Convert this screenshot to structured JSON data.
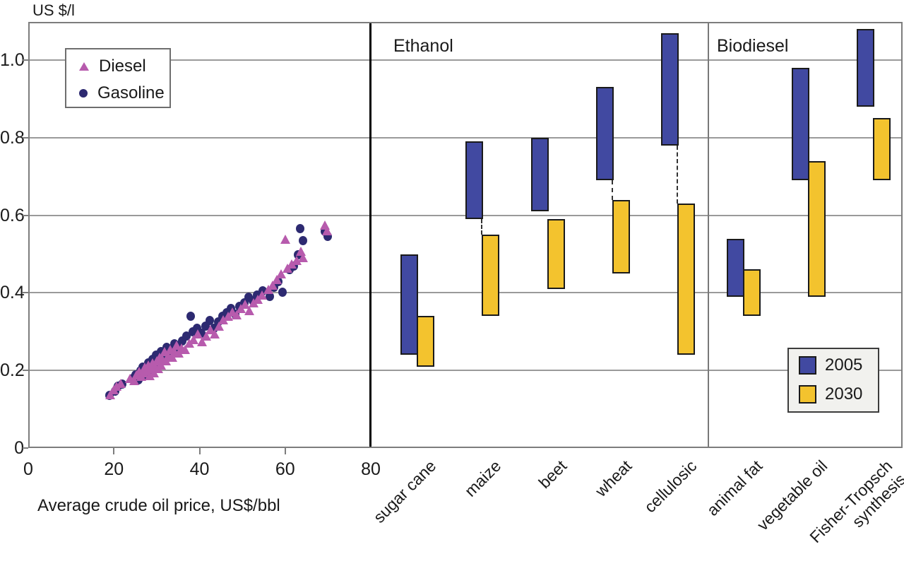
{
  "colors": {
    "diesel": "#B75BAD",
    "gasoline": "#2D2A71",
    "bar_2005": "#4149A1",
    "bar_2030": "#F3C32E",
    "grid": "#9A9A9A",
    "frame": "#7D7D7D",
    "bar_border": "#1A1A1A"
  },
  "chart_data": [
    {
      "type": "scatter",
      "ylabel": "US $/l",
      "xlabel": "Average crude oil price, US$/bbl",
      "xlim": [
        0,
        80
      ],
      "ylim": [
        0,
        1.09
      ],
      "xticks": [
        0,
        20,
        40,
        60,
        80
      ],
      "xtick_labels": [
        "0",
        "20",
        "40",
        "60",
        "80"
      ],
      "yticks": [
        0,
        0.2,
        0.4,
        0.6,
        0.8,
        1.0
      ],
      "ytick_labels": [
        "0",
        "0.2",
        "0.4",
        "0.6",
        "0.8",
        "1.0"
      ],
      "grid": "horizontal",
      "legend_position": "top-left",
      "series": [
        {
          "name": "Diesel",
          "marker": "triangle",
          "color": "#B75BAD",
          "points": [
            [
              19.2,
              0.13
            ],
            [
              20.0,
              0.142
            ],
            [
              20.6,
              0.152
            ],
            [
              21.6,
              0.158
            ],
            [
              23.8,
              0.172
            ],
            [
              24.8,
              0.166
            ],
            [
              25.3,
              0.18
            ],
            [
              25.9,
              0.19
            ],
            [
              26.4,
              0.176
            ],
            [
              26.9,
              0.186
            ],
            [
              27.2,
              0.2
            ],
            [
              27.7,
              0.192
            ],
            [
              28.0,
              0.206
            ],
            [
              28.3,
              0.178
            ],
            [
              28.7,
              0.196
            ],
            [
              29.0,
              0.212
            ],
            [
              29.3,
              0.186
            ],
            [
              29.7,
              0.2
            ],
            [
              30.0,
              0.216
            ],
            [
              30.3,
              0.196
            ],
            [
              30.6,
              0.226
            ],
            [
              31.0,
              0.206
            ],
            [
              31.4,
              0.22
            ],
            [
              31.8,
              0.24
            ],
            [
              32.2,
              0.216
            ],
            [
              32.7,
              0.23
            ],
            [
              33.1,
              0.246
            ],
            [
              33.6,
              0.226
            ],
            [
              34.1,
              0.24
            ],
            [
              34.6,
              0.256
            ],
            [
              35.2,
              0.236
            ],
            [
              35.8,
              0.25
            ],
            [
              36.6,
              0.246
            ],
            [
              37.6,
              0.262
            ],
            [
              38.6,
              0.272
            ],
            [
              39.6,
              0.286
            ],
            [
              40.6,
              0.266
            ],
            [
              41.6,
              0.28
            ],
            [
              42.6,
              0.296
            ],
            [
              43.6,
              0.286
            ],
            [
              44.6,
              0.306
            ],
            [
              45.6,
              0.322
            ],
            [
              46.6,
              0.332
            ],
            [
              47.6,
              0.342
            ],
            [
              48.6,
              0.336
            ],
            [
              49.6,
              0.352
            ],
            [
              50.6,
              0.362
            ],
            [
              51.6,
              0.346
            ],
            [
              52.6,
              0.366
            ],
            [
              53.6,
              0.376
            ],
            [
              54.6,
              0.386
            ],
            [
              56.0,
              0.4
            ],
            [
              57.0,
              0.412
            ],
            [
              58.0,
              0.426
            ],
            [
              59.0,
              0.44
            ],
            [
              60.0,
              0.53
            ],
            [
              60.6,
              0.456
            ],
            [
              61.6,
              0.466
            ],
            [
              62.6,
              0.476
            ],
            [
              63.6,
              0.5
            ],
            [
              64.2,
              0.482
            ],
            [
              69.3,
              0.566
            ],
            [
              69.8,
              0.552
            ]
          ]
        },
        {
          "name": "Gasoline",
          "marker": "circle",
          "color": "#2D2A71",
          "points": [
            [
              19.0,
              0.136
            ],
            [
              20.3,
              0.148
            ],
            [
              21.0,
              0.16
            ],
            [
              22.0,
              0.166
            ],
            [
              24.4,
              0.18
            ],
            [
              25.1,
              0.19
            ],
            [
              25.7,
              0.176
            ],
            [
              26.2,
              0.2
            ],
            [
              26.7,
              0.21
            ],
            [
              27.2,
              0.19
            ],
            [
              27.6,
              0.206
            ],
            [
              28.0,
              0.22
            ],
            [
              28.4,
              0.2
            ],
            [
              28.8,
              0.216
            ],
            [
              29.1,
              0.23
            ],
            [
              29.5,
              0.21
            ],
            [
              29.9,
              0.24
            ],
            [
              30.2,
              0.22
            ],
            [
              30.6,
              0.236
            ],
            [
              31.0,
              0.25
            ],
            [
              31.4,
              0.23
            ],
            [
              31.9,
              0.246
            ],
            [
              32.4,
              0.26
            ],
            [
              32.9,
              0.24
            ],
            [
              33.5,
              0.256
            ],
            [
              34.1,
              0.27
            ],
            [
              34.9,
              0.26
            ],
            [
              35.9,
              0.276
            ],
            [
              36.9,
              0.29
            ],
            [
              37.9,
              0.34
            ],
            [
              38.4,
              0.3
            ],
            [
              39.4,
              0.31
            ],
            [
              40.4,
              0.296
            ],
            [
              41.4,
              0.316
            ],
            [
              42.4,
              0.33
            ],
            [
              43.4,
              0.31
            ],
            [
              44.4,
              0.326
            ],
            [
              45.4,
              0.34
            ],
            [
              46.4,
              0.35
            ],
            [
              47.4,
              0.36
            ],
            [
              48.4,
              0.346
            ],
            [
              49.4,
              0.366
            ],
            [
              50.4,
              0.376
            ],
            [
              51.4,
              0.39
            ],
            [
              52.4,
              0.38
            ],
            [
              53.4,
              0.396
            ],
            [
              54.8,
              0.406
            ],
            [
              56.4,
              0.392
            ],
            [
              57.4,
              0.416
            ],
            [
              58.4,
              0.43
            ],
            [
              59.4,
              0.402
            ],
            [
              61.0,
              0.46
            ],
            [
              62.0,
              0.47
            ],
            [
              63.0,
              0.5
            ],
            [
              63.5,
              0.566
            ],
            [
              64.2,
              0.536
            ],
            [
              69.2,
              0.56
            ],
            [
              69.9,
              0.546
            ]
          ]
        }
      ]
    },
    {
      "type": "range-bar",
      "units": "US $/l",
      "categories": [
        "sugar cane",
        "maize",
        "beet",
        "wheat",
        "cellulosic",
        "animal fat",
        "vegetable oil",
        "Fisher-Tropsch\nsynthesis"
      ],
      "groups": [
        {
          "label": "Ethanol",
          "category_span": [
            0,
            4
          ]
        },
        {
          "label": "Biodiesel",
          "category_span": [
            5,
            7
          ]
        }
      ],
      "series": [
        {
          "name": "2005",
          "color": "#4149A1",
          "ranges": [
            [
              0.24,
              0.5
            ],
            [
              0.59,
              0.79
            ],
            [
              0.61,
              0.8
            ],
            [
              0.69,
              0.93
            ],
            [
              0.78,
              1.07
            ],
            [
              0.39,
              0.54
            ],
            [
              0.69,
              0.98
            ],
            [
              0.88,
              1.08
            ]
          ]
        },
        {
          "name": "2030",
          "color": "#F3C32E",
          "ranges": [
            [
              0.21,
              0.34
            ],
            [
              0.34,
              0.55
            ],
            [
              0.41,
              0.59
            ],
            [
              0.45,
              0.64
            ],
            [
              0.24,
              0.63
            ],
            [
              0.34,
              0.46
            ],
            [
              0.39,
              0.74
            ],
            [
              0.69,
              0.85
            ]
          ]
        }
      ],
      "dashed_connectors": [
        false,
        true,
        false,
        true,
        true,
        false,
        false,
        false
      ],
      "legend_position": "bottom-right"
    }
  ]
}
